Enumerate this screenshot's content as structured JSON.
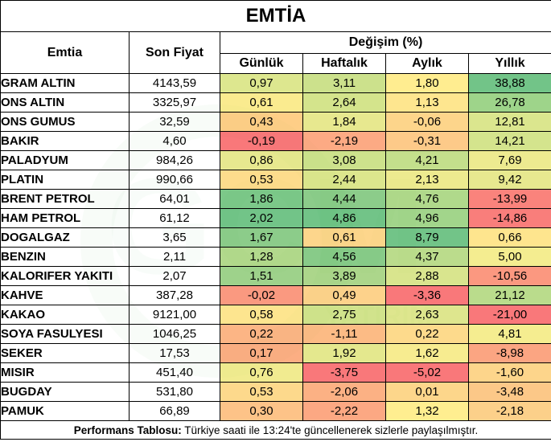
{
  "title": "EMTİA",
  "headers": {
    "name": "Emtia",
    "price": "Son Fiyat",
    "change": "Değişim (%)",
    "periods": [
      "Günlük",
      "Haftalık",
      "Aylık",
      "Yıllık"
    ]
  },
  "rows": [
    {
      "name": "GRAM ALTIN",
      "price": "4143,59",
      "values": [
        "0,97",
        "3,11",
        "1,80",
        "38,88"
      ],
      "colors": [
        "#d9e483",
        "#c7de7f",
        "#ffeb84",
        "#63be7b"
      ]
    },
    {
      "name": "ONS ALTIN",
      "price": "3325,97",
      "values": [
        "0,61",
        "2,64",
        "1,13",
        "26,78"
      ],
      "colors": [
        "#f9e983",
        "#cfe180",
        "#fee383",
        "#94cf7d"
      ]
    },
    {
      "name": "ONS GUMUS",
      "price": "32,59",
      "values": [
        "0,43",
        "1,84",
        "-0,06",
        "12,81"
      ],
      "colors": [
        "#fec97a",
        "#e4e683",
        "#fdd07e",
        "#d7e382"
      ]
    },
    {
      "name": "BAKIR",
      "price": "4,60",
      "values": [
        "-0,19",
        "-2,19",
        "-0,31",
        "14,21"
      ],
      "colors": [
        "#f8696b",
        "#fca177",
        "#fdc47c",
        "#cfe181"
      ]
    },
    {
      "name": "PALADYUM",
      "price": "984,26",
      "values": [
        "0,86",
        "3,08",
        "4,21",
        "7,69"
      ],
      "colors": [
        "#e4e683",
        "#c8df80",
        "#bedc7f",
        "#ebe884"
      ]
    },
    {
      "name": "PLATIN",
      "price": "990,66",
      "values": [
        "0,53",
        "2,44",
        "2,13",
        "9,42"
      ],
      "colors": [
        "#fdd880",
        "#d8e381",
        "#ebe883",
        "#e4e683"
      ]
    },
    {
      "name": "BRENT PETROL",
      "price": "64,01",
      "values": [
        "1,86",
        "4,44",
        "4,76",
        "-13,99"
      ],
      "colors": [
        "#6ec27c",
        "#80c77d",
        "#a7d57e",
        "#f9766e"
      ]
    },
    {
      "name": "HAM PETROL",
      "price": "61,12",
      "values": [
        "2,02",
        "4,86",
        "4,96",
        "-14,86"
      ],
      "colors": [
        "#63be7b",
        "#63be7b",
        "#98d07e",
        "#f8706d"
      ]
    },
    {
      "name": "DOGALGAZ",
      "price": "3,65",
      "values": [
        "1,67",
        "0,61",
        "8,79",
        "0,66"
      ],
      "colors": [
        "#80c77d",
        "#fdd27f",
        "#63be7b",
        "#fee282"
      ]
    },
    {
      "name": "BENZIN",
      "price": "2,11",
      "values": [
        "1,28",
        "4,56",
        "4,37",
        "5,00"
      ],
      "colors": [
        "#aad57f",
        "#7bc57c",
        "#b4d87f",
        "#f3eb84"
      ]
    },
    {
      "name": "KALORIFER YAKITI",
      "price": "2,07",
      "values": [
        "1,51",
        "3,89",
        "2,88",
        "-10,56"
      ],
      "colors": [
        "#93cd7e",
        "#a3d27e",
        "#d5e282",
        "#fb8d72"
      ]
    },
    {
      "name": "KAHVE",
      "price": "387,28",
      "values": [
        "-0,02",
        "0,49",
        "-3,36",
        "21,12"
      ],
      "colors": [
        "#fa8e72",
        "#fdcd7e",
        "#f8696b",
        "#b2d880"
      ]
    },
    {
      "name": "KAKAO",
      "price": "9121,00",
      "values": [
        "0,58",
        "2,75",
        "2,63",
        "-21,00"
      ],
      "colors": [
        "#fde283",
        "#cce080",
        "#dae382",
        "#f8696b"
      ]
    },
    {
      "name": "SOYA FASULYESI",
      "price": "1046,25",
      "values": [
        "0,22",
        "-1,11",
        "0,22",
        "4,81"
      ],
      "colors": [
        "#fcad78",
        "#fcb478",
        "#fdd67f",
        "#f4eb84"
      ]
    },
    {
      "name": "SEKER",
      "price": "17,53",
      "values": [
        "0,17",
        "1,92",
        "1,62",
        "-8,98"
      ],
      "colors": [
        "#fca576",
        "#e1e582",
        "#f6ea84",
        "#fb9b74"
      ]
    },
    {
      "name": "MISIR",
      "price": "451,40",
      "values": [
        "0,76",
        "-3,75",
        "-5,02",
        "-1,60"
      ],
      "colors": [
        "#f0e984",
        "#f8696b",
        "#f8696b",
        "#fdd07e"
      ]
    },
    {
      "name": "BUGDAY",
      "price": "531,80",
      "values": [
        "0,53",
        "-2,06",
        "0,01",
        "-3,48"
      ],
      "colors": [
        "#fdd580",
        "#fca877",
        "#fdd17e",
        "#fcc27b"
      ]
    },
    {
      "name": "PAMUK",
      "price": "66,89",
      "values": [
        "0,30",
        "-2,22",
        "1,32",
        "-2,18"
      ],
      "colors": [
        "#fdbc7b",
        "#fc9e75",
        "#ffec84",
        "#fccb7d"
      ]
    }
  ],
  "footer": {
    "label": "Performans Tablosu:",
    "text": " Türkiye saati ile 13:24'te güncellenerek sizlerle paylaşılmıştır."
  },
  "watermark": {
    "text": "GCM",
    "subtext": "YATIRIM",
    "color": "#2e9c3a"
  }
}
